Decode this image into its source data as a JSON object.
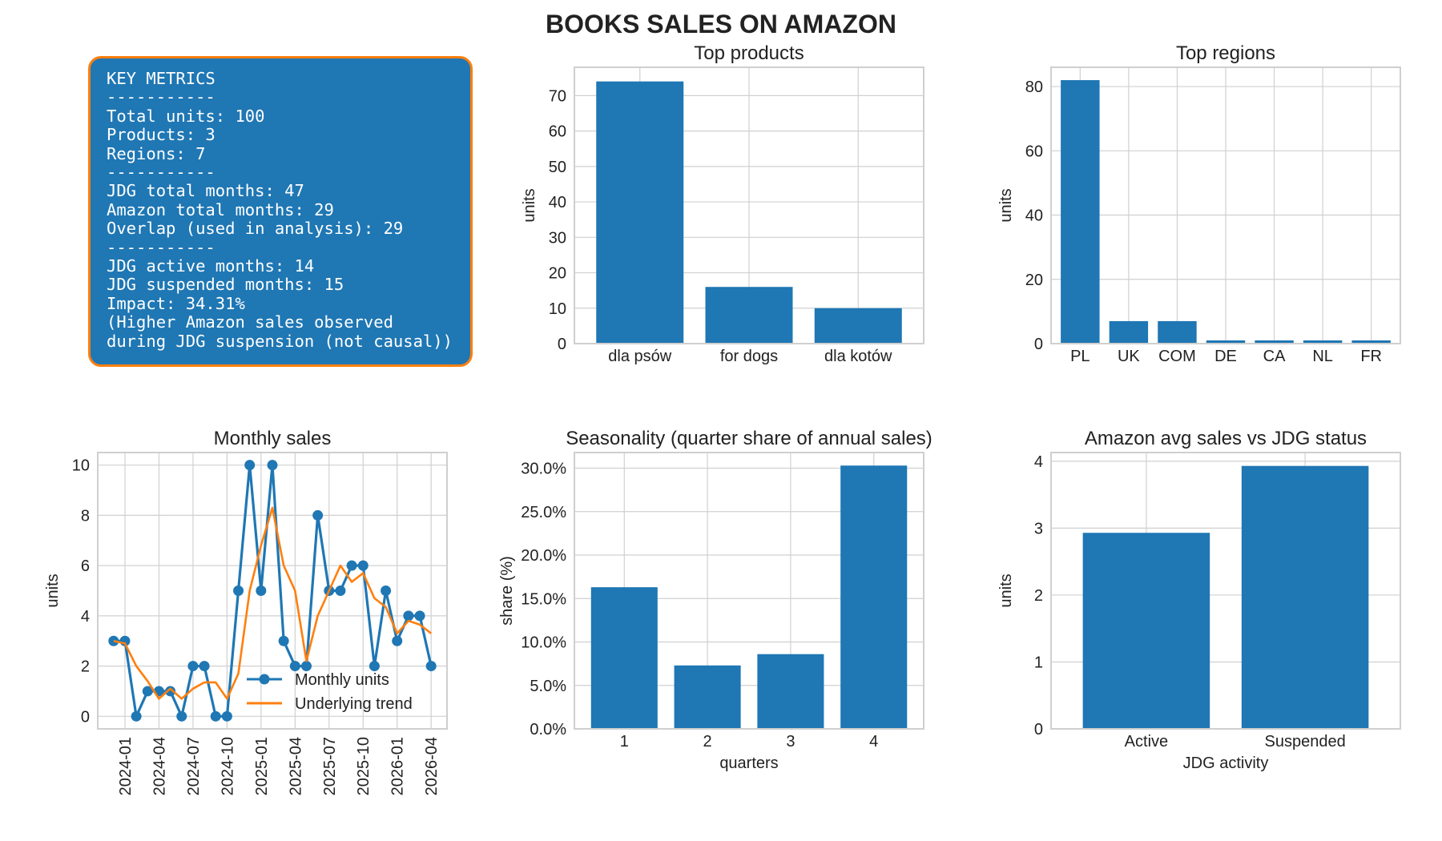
{
  "title": "BOOKS SALES ON AMAZON",
  "key_metrics_lines": [
    "KEY METRICS",
    "-----------",
    "Total units: 100",
    "Products: 3",
    "Regions: 7",
    "-----------",
    "JDG total months: 47",
    "Amazon total months: 29",
    "Overlap (used in analysis): 29",
    "-----------",
    "JDG active months: 14",
    "JDG suspended months: 15",
    "Impact: 34.31%",
    "(Higher Amazon sales observed",
    "during JDG suspension (not causal))"
  ],
  "colors": {
    "blue": "#1f77b4",
    "orange": "#ff7f0e",
    "grid": "#d0d0d0"
  },
  "chart_data": [
    {
      "id": "top_products",
      "type": "bar",
      "title": "Top products",
      "xlabel": "",
      "ylabel": "units",
      "categories": [
        "dla psów",
        "for dogs",
        "dla kotów"
      ],
      "values": [
        74,
        16,
        10
      ],
      "ylim": [
        0,
        78
      ],
      "yticks": [
        0,
        10,
        20,
        30,
        40,
        50,
        60,
        70
      ],
      "ytick_labels": [
        "0",
        "10",
        "20",
        "30",
        "40",
        "50",
        "60",
        "70"
      ],
      "grid": true
    },
    {
      "id": "top_regions",
      "type": "bar",
      "title": "Top regions",
      "xlabel": "",
      "ylabel": "units",
      "categories": [
        "PL",
        "UK",
        "COM",
        "DE",
        "CA",
        "NL",
        "FR"
      ],
      "values": [
        82,
        7,
        7,
        1,
        1,
        1,
        1
      ],
      "ylim": [
        0,
        86
      ],
      "yticks": [
        0,
        20,
        40,
        60,
        80
      ],
      "ytick_labels": [
        "0",
        "20",
        "40",
        "60",
        "80"
      ],
      "grid": true
    },
    {
      "id": "monthly_sales",
      "type": "line",
      "title": "Monthly sales",
      "xlabel": "",
      "ylabel": "units",
      "x": [
        "2023-12",
        "2024-01",
        "2024-02",
        "2024-03",
        "2024-04",
        "2024-05",
        "2024-06",
        "2024-07",
        "2024-08",
        "2024-09",
        "2024-10",
        "2024-11",
        "2024-12",
        "2025-01",
        "2025-02",
        "2025-03",
        "2025-04",
        "2025-05",
        "2025-06",
        "2025-07",
        "2025-08",
        "2025-09",
        "2025-10",
        "2025-11",
        "2025-12",
        "2026-01",
        "2026-02",
        "2026-03",
        "2026-04"
      ],
      "series": [
        {
          "name": "Monthly units",
          "values": [
            3,
            3,
            0,
            1,
            1,
            1,
            0,
            2,
            2,
            0,
            0,
            5,
            10,
            5,
            10,
            3,
            2,
            2,
            8,
            5,
            5,
            6,
            6,
            2,
            5,
            3,
            4,
            4,
            2
          ],
          "markers": true
        },
        {
          "name": "Underlying trend",
          "values": [
            3,
            2.9,
            2,
            1.4,
            0.7,
            1.1,
            0.7,
            1.1,
            1.35,
            1.35,
            0.7,
            1.7,
            5,
            6.8,
            8.3,
            6,
            5,
            2.2,
            4,
            5,
            6,
            5.35,
            5.7,
            4.7,
            4.35,
            3.3,
            3.8,
            3.65,
            3.3
          ],
          "markers": false
        }
      ],
      "xticks": [
        "2024-01",
        "2024-04",
        "2024-07",
        "2024-10",
        "2025-01",
        "2025-04",
        "2025-07",
        "2025-10",
        "2026-01",
        "2026-04"
      ],
      "ylim": [
        -0.5,
        10.5
      ],
      "yticks": [
        0,
        2,
        4,
        6,
        8,
        10
      ],
      "ytick_labels": [
        "0",
        "2",
        "4",
        "6",
        "8",
        "10"
      ],
      "legend_position": "lower right",
      "grid": true
    },
    {
      "id": "seasonality",
      "type": "bar",
      "title": "Seasonality (quarter share of annual sales)",
      "xlabel": "quarters",
      "ylabel": "share (%)",
      "categories": [
        "1",
        "2",
        "3",
        "4"
      ],
      "values": [
        16.3,
        7.3,
        8.6,
        30.3
      ],
      "ylim": [
        0,
        31.8
      ],
      "yticks": [
        0,
        5,
        10,
        15,
        20,
        25,
        30
      ],
      "ytick_labels": [
        "0.0%",
        "5.0%",
        "10.0%",
        "15.0%",
        "20.0%",
        "25.0%",
        "30.0%"
      ],
      "grid": true
    },
    {
      "id": "avg_vs_jdg",
      "type": "bar",
      "title": "Amazon avg sales vs JDG status",
      "xlabel": "JDG activity",
      "ylabel": "units",
      "categories": [
        "Active",
        "Suspended"
      ],
      "values": [
        2.93,
        3.93
      ],
      "ylim": [
        0,
        4.13
      ],
      "yticks": [
        0,
        1,
        2,
        3,
        4
      ],
      "ytick_labels": [
        "0",
        "1",
        "2",
        "3",
        "4"
      ],
      "grid": true
    }
  ]
}
